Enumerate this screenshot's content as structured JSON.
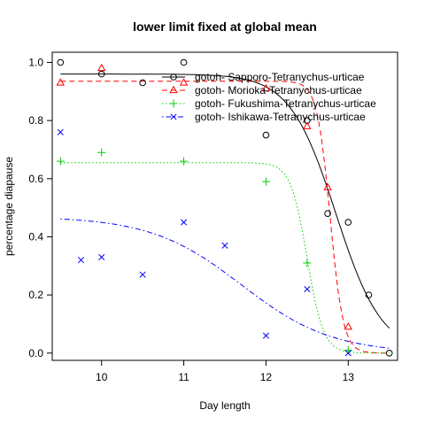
{
  "chart_data": {
    "type": "scatter",
    "title": "lower limit fixed at global mean",
    "xlabel": "Day length",
    "ylabel": "percentage diapause",
    "xlim": [
      9.4,
      13.6
    ],
    "ylim": [
      -0.025,
      1.035
    ],
    "x_ticks": [
      10,
      11,
      12,
      13
    ],
    "y_ticks": [
      0.0,
      0.2,
      0.4,
      0.6,
      0.8,
      1.0
    ],
    "x_tick_labels": [
      "10",
      "11",
      "12",
      "13"
    ],
    "y_tick_labels": [
      "0.0",
      "0.2",
      "0.4",
      "0.6",
      "0.8",
      "1.0"
    ],
    "legend_position": "top-right",
    "grid": false,
    "series": [
      {
        "name": "gotoh- Sapporo-Tetranychus-urticae",
        "color": "#000000",
        "marker": "circle",
        "line_style": "solid",
        "points": [
          [
            9.5,
            1.0
          ],
          [
            10.0,
            0.96
          ],
          [
            10.5,
            0.93
          ],
          [
            11.0,
            1.0
          ],
          [
            12.0,
            0.75
          ],
          [
            12.5,
            0.8
          ],
          [
            12.75,
            0.48
          ],
          [
            13.0,
            0.45
          ],
          [
            13.25,
            0.2
          ],
          [
            13.5,
            0.0
          ]
        ],
        "fit": {
          "upper": 0.96,
          "lower": 0.0,
          "mid": 12.85,
          "scale": 0.28
        }
      },
      {
        "name": "gotoh- Morioka-Tetranychus-urticae",
        "color": "#ff0000",
        "marker": "triangle",
        "line_style": "dashed",
        "points": [
          [
            9.5,
            0.93
          ],
          [
            10.0,
            0.98
          ],
          [
            11.0,
            0.93
          ],
          [
            12.0,
            0.91
          ],
          [
            12.5,
            0.78
          ],
          [
            12.75,
            0.57
          ],
          [
            13.0,
            0.09
          ]
        ],
        "fit": {
          "upper": 0.935,
          "lower": 0.0,
          "mid": 12.78,
          "scale": 0.08
        }
      },
      {
        "name": "gotoh- Fukushima-Tetranychus-urticae",
        "color": "#00cd00",
        "marker": "plus",
        "line_style": "dotted",
        "points": [
          [
            9.5,
            0.66
          ],
          [
            10.0,
            0.69
          ],
          [
            11.0,
            0.66
          ],
          [
            12.0,
            0.59
          ],
          [
            12.5,
            0.31
          ],
          [
            13.0,
            0.01
          ]
        ],
        "fit": {
          "upper": 0.655,
          "lower": 0.0,
          "mid": 12.5,
          "scale": 0.1
        }
      },
      {
        "name": "gotoh- Ishikawa-Tetranychus-urticae",
        "color": "#0000ff",
        "marker": "x",
        "line_style": "dotdash",
        "points": [
          [
            9.5,
            0.76
          ],
          [
            9.75,
            0.32
          ],
          [
            10.0,
            0.33
          ],
          [
            10.5,
            0.27
          ],
          [
            11.0,
            0.45
          ],
          [
            11.5,
            0.37
          ],
          [
            12.0,
            0.06
          ],
          [
            12.5,
            0.22
          ],
          [
            13.0,
            0.0
          ]
        ],
        "fit": {
          "upper": 0.47,
          "lower": 0.0,
          "mid": 11.7,
          "scale": 0.55
        }
      }
    ]
  }
}
